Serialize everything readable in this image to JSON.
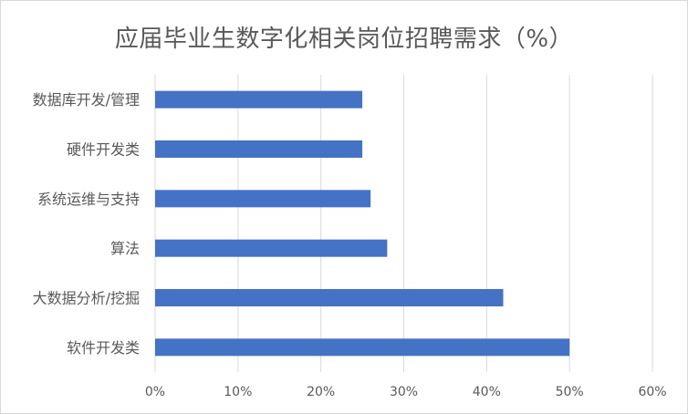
{
  "chart_data": {
    "type": "bar",
    "orientation": "horizontal",
    "title": "应届毕业生数字化相关岗位招聘需求（%）",
    "categories": [
      "数据库开发/管理",
      "硬件开发类",
      "系统运维与支持",
      "算法",
      "大数据分析/挖掘",
      "软件开发类"
    ],
    "values": [
      25,
      25,
      26,
      28,
      42,
      50
    ],
    "xlim": [
      0,
      60
    ],
    "x_ticks": [
      0,
      10,
      20,
      30,
      40,
      50,
      60
    ],
    "x_tick_labels": [
      "0%",
      "10%",
      "20%",
      "30%",
      "40%",
      "50%",
      "60%"
    ],
    "grid": true,
    "legend": "none",
    "bar_color": "#4472c4",
    "grid_color": "#d9d9d9"
  }
}
